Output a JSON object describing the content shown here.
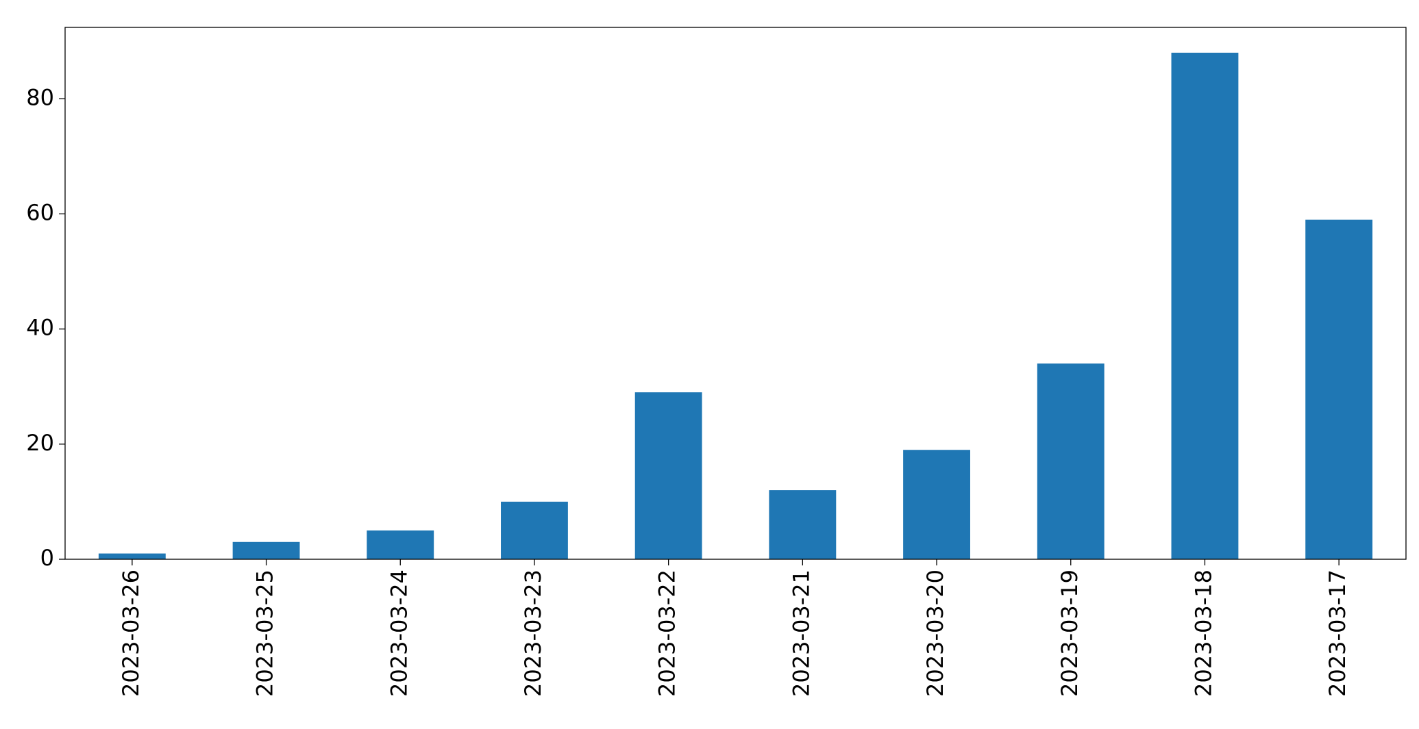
{
  "chart_data": {
    "type": "bar",
    "categories": [
      "2023-03-26",
      "2023-03-25",
      "2023-03-24",
      "2023-03-23",
      "2023-03-22",
      "2023-03-21",
      "2023-03-20",
      "2023-03-19",
      "2023-03-18",
      "2023-03-17"
    ],
    "values": [
      1,
      3,
      5,
      10,
      29,
      12,
      19,
      34,
      88,
      59
    ],
    "color": "#1f77b4",
    "ylim": [
      0,
      92.4
    ],
    "yticks": [
      0,
      20,
      40,
      60,
      80
    ],
    "grid": false
  }
}
